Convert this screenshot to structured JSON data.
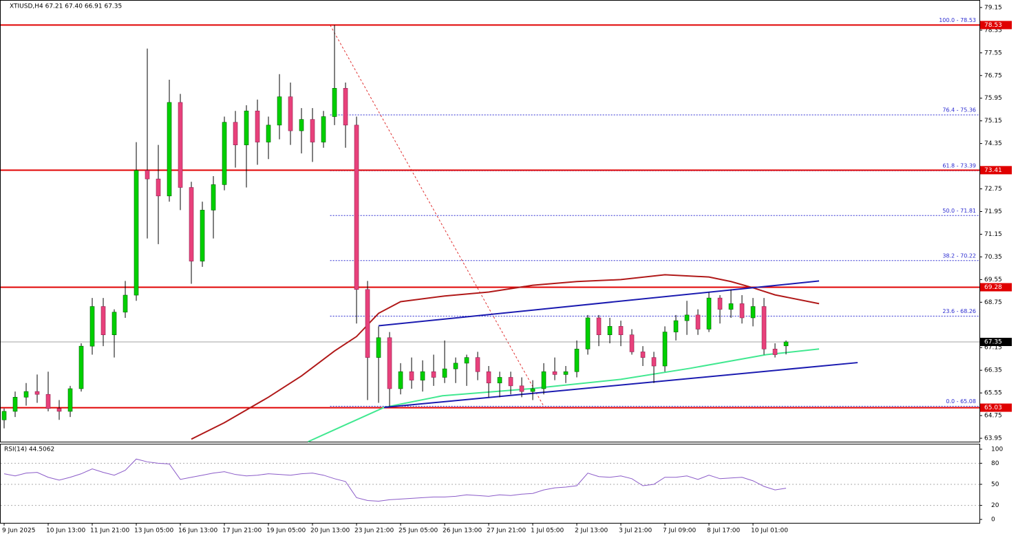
{
  "chart_data": {
    "type": "candlestick",
    "header": "XTIUSD,H4  67.21 67.40 66.91 67.35",
    "categories": [
      "9 Jun 2025",
      null,
      null,
      null,
      "10 Jun 13:00",
      null,
      null,
      null,
      "11 Jun 21:00",
      null,
      null,
      null,
      "13 Jun 05:00",
      null,
      null,
      null,
      "16 Jun 13:00",
      null,
      null,
      null,
      "17 Jun 21:00",
      null,
      null,
      null,
      "19 Jun 05:00",
      null,
      null,
      null,
      "20 Jun 13:00",
      null,
      null,
      null,
      "23 Jun 21:00",
      null,
      null,
      null,
      "25 Jun 05:00",
      null,
      null,
      null,
      "26 Jun 13:00",
      null,
      null,
      null,
      "27 Jun 21:00",
      null,
      null,
      null,
      "1 Jul 05:00",
      null,
      null,
      null,
      "2 Jul 13:00",
      null,
      null,
      null,
      "3 Jul 21:00",
      null,
      null,
      null,
      "7 Jul 09:00",
      null,
      null,
      null,
      "8 Jul 17:00",
      null,
      null,
      null,
      "10 Jul 01:00",
      null,
      null,
      null
    ],
    "open": [
      64.6,
      64.9,
      65.4,
      65.6,
      65.5,
      65.0,
      64.9,
      65.7,
      67.2,
      68.6,
      67.6,
      68.4,
      69.0,
      73.4,
      73.1,
      72.5,
      75.8,
      72.8,
      70.2,
      72.0,
      72.9,
      75.1,
      74.3,
      75.5,
      74.4,
      75.0,
      76.0,
      74.8,
      75.2,
      74.4,
      75.3,
      76.3,
      75.0,
      69.2,
      66.8,
      67.5,
      65.7,
      66.3,
      66.0,
      66.3,
      66.1,
      66.4,
      66.6,
      66.8,
      66.3,
      65.9,
      66.1,
      65.8,
      65.6,
      65.7,
      66.3,
      66.2,
      66.3,
      67.1,
      68.2,
      67.6,
      67.9,
      67.6,
      67.0,
      66.8,
      66.5,
      67.7,
      68.1,
      68.3,
      67.8,
      68.9,
      68.5,
      68.7,
      68.2,
      68.6,
      67.1,
      67.21
    ],
    "high": [
      65.0,
      65.6,
      65.9,
      66.2,
      66.3,
      65.3,
      65.8,
      67.3,
      68.9,
      68.9,
      68.5,
      69.5,
      74.4,
      77.7,
      74.3,
      76.6,
      76.1,
      73.0,
      72.3,
      73.2,
      75.3,
      75.5,
      75.7,
      75.9,
      75.3,
      76.8,
      76.5,
      75.6,
      75.6,
      75.5,
      78.53,
      76.5,
      75.3,
      69.5,
      67.9,
      67.7,
      66.6,
      66.8,
      66.7,
      66.9,
      67.4,
      66.8,
      66.9,
      67.0,
      66.5,
      66.3,
      66.3,
      66.1,
      66.0,
      66.6,
      66.8,
      66.5,
      67.4,
      68.3,
      68.3,
      68.2,
      68.1,
      67.8,
      67.2,
      67.0,
      67.9,
      68.3,
      68.8,
      68.5,
      69.1,
      69.0,
      69.2,
      69.0,
      68.9,
      68.9,
      67.3,
      67.4
    ],
    "low": [
      64.3,
      64.7,
      65.1,
      65.2,
      64.9,
      64.6,
      64.7,
      65.6,
      66.9,
      67.2,
      66.8,
      68.2,
      68.8,
      71.0,
      70.8,
      72.3,
      72.0,
      69.4,
      70.0,
      71.0,
      72.7,
      73.5,
      72.8,
      73.6,
      73.8,
      74.5,
      74.3,
      74.0,
      73.7,
      74.2,
      75.0,
      74.2,
      68.0,
      65.3,
      65.2,
      65.08,
      65.5,
      65.7,
      65.6,
      65.8,
      65.9,
      65.9,
      65.8,
      66.0,
      65.4,
      65.4,
      65.5,
      65.4,
      65.3,
      65.5,
      66.0,
      65.9,
      66.1,
      66.9,
      67.2,
      67.3,
      67.2,
      66.9,
      66.5,
      65.9,
      66.3,
      67.4,
      67.6,
      67.6,
      67.7,
      68.0,
      68.2,
      68.0,
      67.9,
      66.9,
      66.8,
      66.91
    ],
    "close": [
      64.9,
      65.4,
      65.6,
      65.5,
      65.0,
      64.9,
      65.7,
      67.2,
      68.6,
      67.6,
      68.4,
      69.0,
      73.4,
      73.1,
      72.5,
      75.8,
      72.8,
      70.2,
      72.0,
      72.9,
      75.1,
      74.3,
      75.5,
      74.4,
      75.0,
      76.0,
      74.8,
      75.2,
      74.4,
      75.3,
      76.3,
      75.0,
      69.2,
      66.8,
      67.5,
      65.7,
      66.3,
      66.0,
      66.3,
      66.1,
      66.4,
      66.6,
      66.8,
      66.3,
      65.9,
      66.1,
      65.8,
      65.6,
      65.7,
      66.3,
      66.2,
      66.3,
      67.1,
      68.2,
      67.6,
      67.9,
      67.6,
      67.0,
      66.8,
      66.5,
      67.7,
      68.1,
      68.3,
      67.8,
      68.9,
      68.5,
      68.7,
      68.2,
      68.6,
      67.1,
      66.9,
      67.35
    ],
    "up_color": "#00d000",
    "down_color": "#e8417b",
    "ylim": [
      63.83,
      79.39
    ],
    "yticks": [
      79.15,
      78.35,
      77.55,
      76.75,
      75.95,
      75.15,
      74.35,
      72.75,
      71.95,
      71.15,
      70.35,
      69.55,
      68.75,
      67.15,
      66.35,
      65.55,
      64.75,
      63.95
    ],
    "levels": [
      78.53,
      73.41,
      69.28,
      65.03
    ],
    "level_color": "#e00000",
    "last_price": 67.35,
    "fib_levels": [
      {
        "value": 78.53,
        "label": "100.0 - 78.53"
      },
      {
        "value": 75.36,
        "label": "76.4 - 75.36"
      },
      {
        "value": 73.39,
        "label": "61.8 - 73.39"
      },
      {
        "value": 71.81,
        "label": "50.0 - 71.81"
      },
      {
        "value": 70.22,
        "label": "38.2 - 70.22"
      },
      {
        "value": 68.26,
        "label": "23.6 - 68.26"
      },
      {
        "value": 65.08,
        "label": "0.0 - 65.08"
      }
    ],
    "fib_start": 29.6,
    "fib_line": {
      "x": [
        29.6,
        49
      ],
      "values": [
        78.53,
        65.08
      ]
    },
    "lines": [
      {
        "color": "#b01818",
        "x": [
          17,
          20,
          24,
          27,
          30,
          32,
          34,
          36,
          40,
          44,
          48,
          52,
          56,
          60,
          64,
          66,
          68,
          70,
          74
        ],
        "values": [
          63.92,
          64.5,
          65.4,
          66.15,
          67.03,
          67.54,
          68.36,
          68.77,
          68.97,
          69.11,
          69.35,
          69.48,
          69.55,
          69.72,
          69.64,
          69.48,
          69.26,
          69.01,
          68.7
        ]
      },
      {
        "color": "#40e890",
        "x": [
          27.6,
          34.5,
          39.8,
          47.8,
          56,
          62.3,
          69.2,
          74
        ],
        "values": [
          63.83,
          65.04,
          65.45,
          65.7,
          66.03,
          66.42,
          66.9,
          67.1
        ]
      },
      {
        "color": "#1a1ab0",
        "x": [
          34,
          74
        ],
        "values": [
          67.92,
          69.5
        ]
      },
      {
        "color": "#1a1ab0",
        "x": [
          34.5,
          77.5
        ],
        "values": [
          65.04,
          66.62
        ]
      }
    ],
    "rsi_label": "RSI(14) 44.5062",
    "rsi": [
      65,
      62,
      66,
      67,
      60,
      56,
      60,
      65,
      72,
      67,
      63,
      70,
      86,
      82,
      80,
      79,
      57,
      60,
      63,
      66,
      68,
      64,
      62,
      63,
      65,
      64,
      63,
      65,
      66,
      63,
      58,
      54,
      31,
      27,
      26,
      28,
      29,
      30,
      31,
      32,
      32,
      33,
      35,
      34,
      33,
      35,
      34,
      36,
      37,
      42,
      45,
      46,
      48,
      66,
      61,
      60,
      62,
      58,
      48,
      50,
      60,
      60,
      62,
      57,
      63,
      58,
      59,
      60,
      55,
      47,
      42,
      44.5062
    ],
    "rsi_color": "#8a5ac8",
    "rsi_ylim": [
      -4.9,
      106.8
    ],
    "rsi_yticks": [
      100,
      80,
      50,
      20,
      0
    ]
  }
}
